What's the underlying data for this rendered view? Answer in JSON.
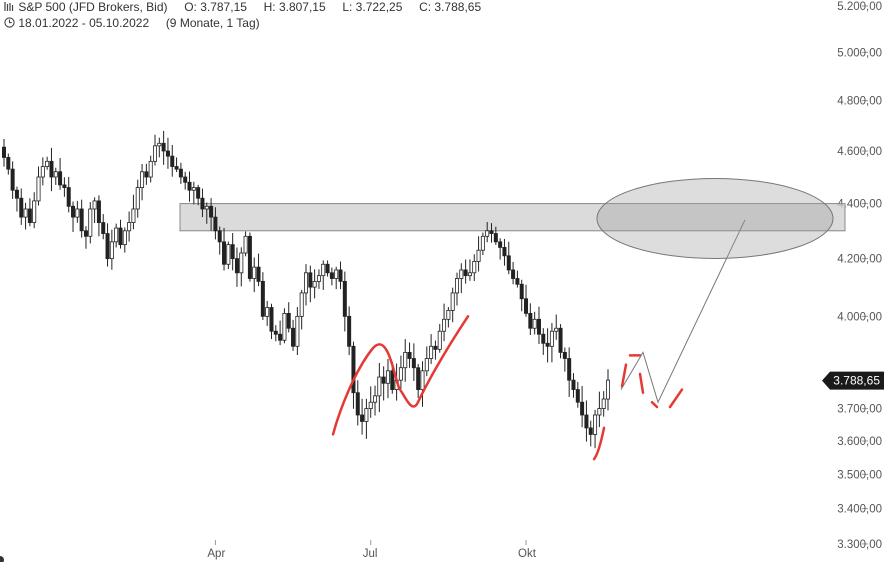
{
  "header": {
    "symbol_line": "S&P 500 (JFD Brokers, Bid)",
    "open": "O: 3.787,15",
    "high": "H: 3.807,15",
    "low": "L: 3.722,25",
    "close": "C: 3.788,65",
    "range": "18.01.2022 - 05.10.2022",
    "period": "(9 Monate, 1 Tag)",
    "chart_icon": "candlestick-icon",
    "clock_icon": "clock-icon"
  },
  "chart_data": {
    "type": "candlestick",
    "title": "S&P 500 (JFD Brokers, Bid)",
    "y_scale": "log",
    "ylim": [
      3280,
      5300
    ],
    "y_ticks": [
      {
        "value": 5200,
        "label": "5.200,00"
      },
      {
        "value": 5000,
        "label": "5.000,00"
      },
      {
        "value": 4800,
        "label": "4.800,00"
      },
      {
        "value": 4600,
        "label": "4.600,00"
      },
      {
        "value": 4400,
        "label": "4.400,00"
      },
      {
        "value": 4200,
        "label": "4.200,00"
      },
      {
        "value": 4000,
        "label": "4.000,00"
      },
      {
        "value": 3700,
        "label": "3.700,00"
      },
      {
        "value": 3600,
        "label": "3.600,00"
      },
      {
        "value": 3500,
        "label": "3.500,00"
      },
      {
        "value": 3400,
        "label": "3.400,00"
      },
      {
        "value": 3300,
        "label": "3.300,00"
      }
    ],
    "x_ticks": [
      "Apr",
      "Jul",
      "Okt"
    ],
    "last_price": {
      "value": 3788.65,
      "label": "3.788,65"
    },
    "resistance_zone": {
      "low": 4300,
      "high": 4400
    },
    "daily_close": [
      4575,
      4530,
      4450,
      4420,
      4350,
      4380,
      4330,
      4410,
      4500,
      4540,
      4560,
      4500,
      4520,
      4470,
      4460,
      4390,
      4350,
      4380,
      4300,
      4280,
      4380,
      4410,
      4330,
      4290,
      4200,
      4260,
      4310,
      4250,
      4300,
      4330,
      4380,
      4460,
      4520,
      4500,
      4560,
      4620,
      4630,
      4600,
      4580,
      4540,
      4530,
      4500,
      4480,
      4450,
      4460,
      4420,
      4380,
      4390,
      4350,
      4300,
      4260,
      4180,
      4250,
      4200,
      4150,
      4220,
      4280,
      4130,
      4170,
      4120,
      4000,
      4030,
      3950,
      3940,
      3920,
      4010,
      3960,
      3900,
      4000,
      4080,
      4150,
      4100,
      4120,
      4140,
      4180,
      4150,
      4130,
      4160,
      4120,
      4000,
      3900,
      3750,
      3680,
      3660,
      3700,
      3720,
      3740,
      3800,
      3780,
      3820,
      3760,
      3790,
      3830,
      3880,
      3860,
      3830,
      3760,
      3820,
      3860,
      3900,
      3890,
      3950,
      3990,
      4020,
      4080,
      4130,
      4160,
      4140,
      4150,
      4190,
      4230,
      4280,
      4300,
      4290,
      4260,
      4240,
      4210,
      4160,
      4130,
      4110,
      4060,
      4010,
      3960,
      3990,
      3940,
      3910,
      3900,
      3950,
      3960,
      3880,
      3860,
      3790,
      3760,
      3720,
      3680,
      3640,
      3620,
      3680,
      3700,
      3730,
      3790
    ],
    "annotations": [
      {
        "type": "freehand-curve",
        "color": "#e53935"
      },
      {
        "type": "projection-zigzag",
        "color": "#777777"
      },
      {
        "type": "ellipse-target",
        "color": "#888888"
      }
    ]
  }
}
